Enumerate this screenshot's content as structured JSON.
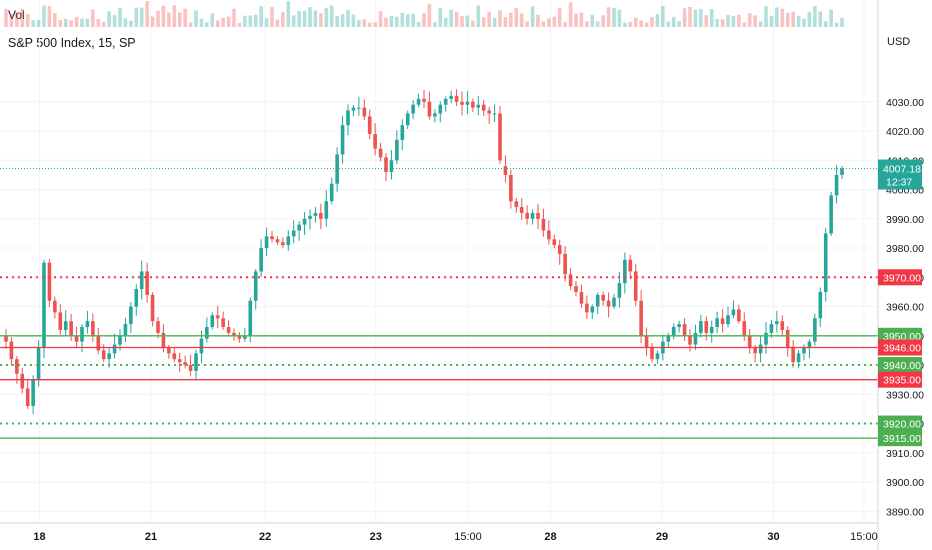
{
  "header": {
    "title": "S&P 500 Index, 15, SP",
    "volume_label": "Vol",
    "currency": "USD"
  },
  "colors": {
    "up": "#26a69a",
    "down": "#ef5350",
    "green_line": "#4caf50",
    "red_line": "#f23645",
    "last_price_tag": "#26a69a"
  },
  "chart_data": {
    "type": "candlestick",
    "ylim": [
      3886,
      4046
    ],
    "y_ticks": [
      3890,
      3900,
      3910,
      3920,
      3930,
      3940,
      3950,
      3960,
      3970,
      3980,
      3990,
      4000,
      4010,
      4020,
      4030
    ],
    "x_ticks": [
      {
        "label": "18",
        "pos": 0.045
      },
      {
        "label": "21",
        "pos": 0.172
      },
      {
        "label": "22",
        "pos": 0.302
      },
      {
        "label": "23",
        "pos": 0.428
      },
      {
        "label": "15:00",
        "pos": 0.533
      },
      {
        "label": "28",
        "pos": 0.627
      },
      {
        "label": "29",
        "pos": 0.754
      },
      {
        "label": "30",
        "pos": 0.881
      },
      {
        "label": "15:00",
        "pos": 0.984
      }
    ],
    "last_price": {
      "value": "4007.18",
      "countdown": "12:37"
    },
    "levels": [
      {
        "value": 3970,
        "label": "3970.00",
        "style": "dotted",
        "color": "red"
      },
      {
        "value": 3950,
        "label": "3950.00",
        "style": "solid",
        "color": "green"
      },
      {
        "value": 3946,
        "label": "3946.00",
        "style": "solid",
        "color": "red"
      },
      {
        "value": 3940,
        "label": "3940.00",
        "style": "dotted",
        "color": "green"
      },
      {
        "value": 3935,
        "label": "3935.00",
        "style": "solid",
        "color": "red"
      },
      {
        "value": 3920,
        "label": "3920.00",
        "style": "dotted",
        "color": "green"
      },
      {
        "value": 3915,
        "label": "3915.00",
        "style": "solid",
        "color": "green"
      }
    ],
    "path_closes": [
      3948,
      3942,
      3937,
      3932,
      3926,
      3935,
      3946,
      3975,
      3962,
      3958,
      3952,
      3955,
      3950,
      3948,
      3953,
      3955,
      3950,
      3945,
      3942,
      3944,
      3947,
      3950,
      3954,
      3960,
      3966,
      3972,
      3964,
      3955,
      3951,
      3946,
      3944,
      3942,
      3941,
      3940,
      3938,
      3944,
      3949,
      3953,
      3957,
      3956,
      3953,
      3951,
      3950,
      3949,
      3950,
      3962,
      3972,
      3980,
      3984,
      3983,
      3982,
      3981,
      3984,
      3986,
      3988,
      3990,
      3991,
      3992,
      3990,
      3996,
      4002,
      4012,
      4022,
      4027,
      4028,
      4028,
      4025,
      4019,
      4014,
      4011,
      4006,
      4010,
      4017,
      4022,
      4026,
      4029,
      4031,
      4030,
      4025,
      4026,
      4029,
      4031,
      4032,
      4030,
      4029,
      4030,
      4028,
      4029,
      4027,
      4026,
      4026,
      4010,
      4005,
      3996,
      3994,
      3992,
      3990,
      3992,
      3990,
      3986,
      3983,
      3981,
      3978,
      3971,
      3967,
      3965,
      3961,
      3958,
      3960,
      3964,
      3962,
      3960,
      3963,
      3968,
      3976,
      3972,
      3962,
      3950,
      3946,
      3942,
      3944,
      3948,
      3950,
      3953,
      3954,
      3950,
      3947,
      3951,
      3955,
      3951,
      3953,
      3956,
      3954,
      3957,
      3959,
      3955,
      3950,
      3946,
      3944,
      3947,
      3951,
      3954,
      3955,
      3952,
      3946,
      3941,
      3944,
      3946,
      3948,
      3956,
      3965,
      3985,
      3998,
      4005,
      4007.18
    ],
    "gap_after_index": 91
  }
}
